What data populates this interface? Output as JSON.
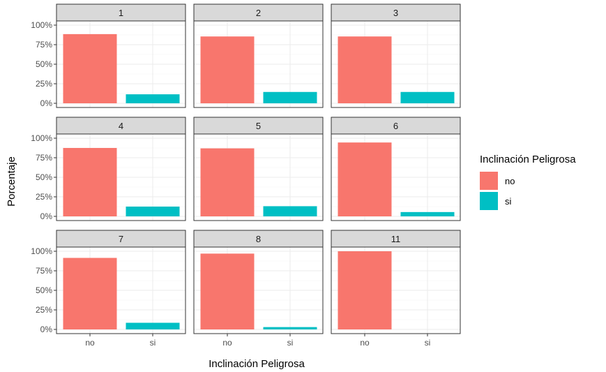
{
  "chart_data": {
    "type": "bar",
    "facet_by": "panel",
    "categories": [
      "no",
      "si"
    ],
    "xlabel": "Inclinación Peligrosa",
    "ylabel": "Porcentaje",
    "ylim": [
      0,
      1
    ],
    "y_ticks": [
      "0%",
      "25%",
      "50%",
      "75%",
      "100%"
    ],
    "y_tick_values": [
      0,
      0.25,
      0.5,
      0.75,
      1.0
    ],
    "grid": true,
    "legend": {
      "title": "Inclinación Peligrosa",
      "position": "right",
      "entries": [
        {
          "label": "no",
          "color": "#F8766D"
        },
        {
          "label": "si",
          "color": "#00BFC4"
        }
      ]
    },
    "panels": [
      {
        "label": "1",
        "values": [
          0.885,
          0.115
        ]
      },
      {
        "label": "2",
        "values": [
          0.855,
          0.145
        ]
      },
      {
        "label": "3",
        "values": [
          0.855,
          0.145
        ]
      },
      {
        "label": "4",
        "values": [
          0.875,
          0.125
        ]
      },
      {
        "label": "5",
        "values": [
          0.87,
          0.13
        ]
      },
      {
        "label": "6",
        "values": [
          0.945,
          0.055
        ]
      },
      {
        "label": "7",
        "values": [
          0.915,
          0.085
        ]
      },
      {
        "label": "8",
        "values": [
          0.97,
          0.03
        ]
      },
      {
        "label": "11",
        "values": [
          1.0,
          0.0
        ]
      }
    ]
  }
}
